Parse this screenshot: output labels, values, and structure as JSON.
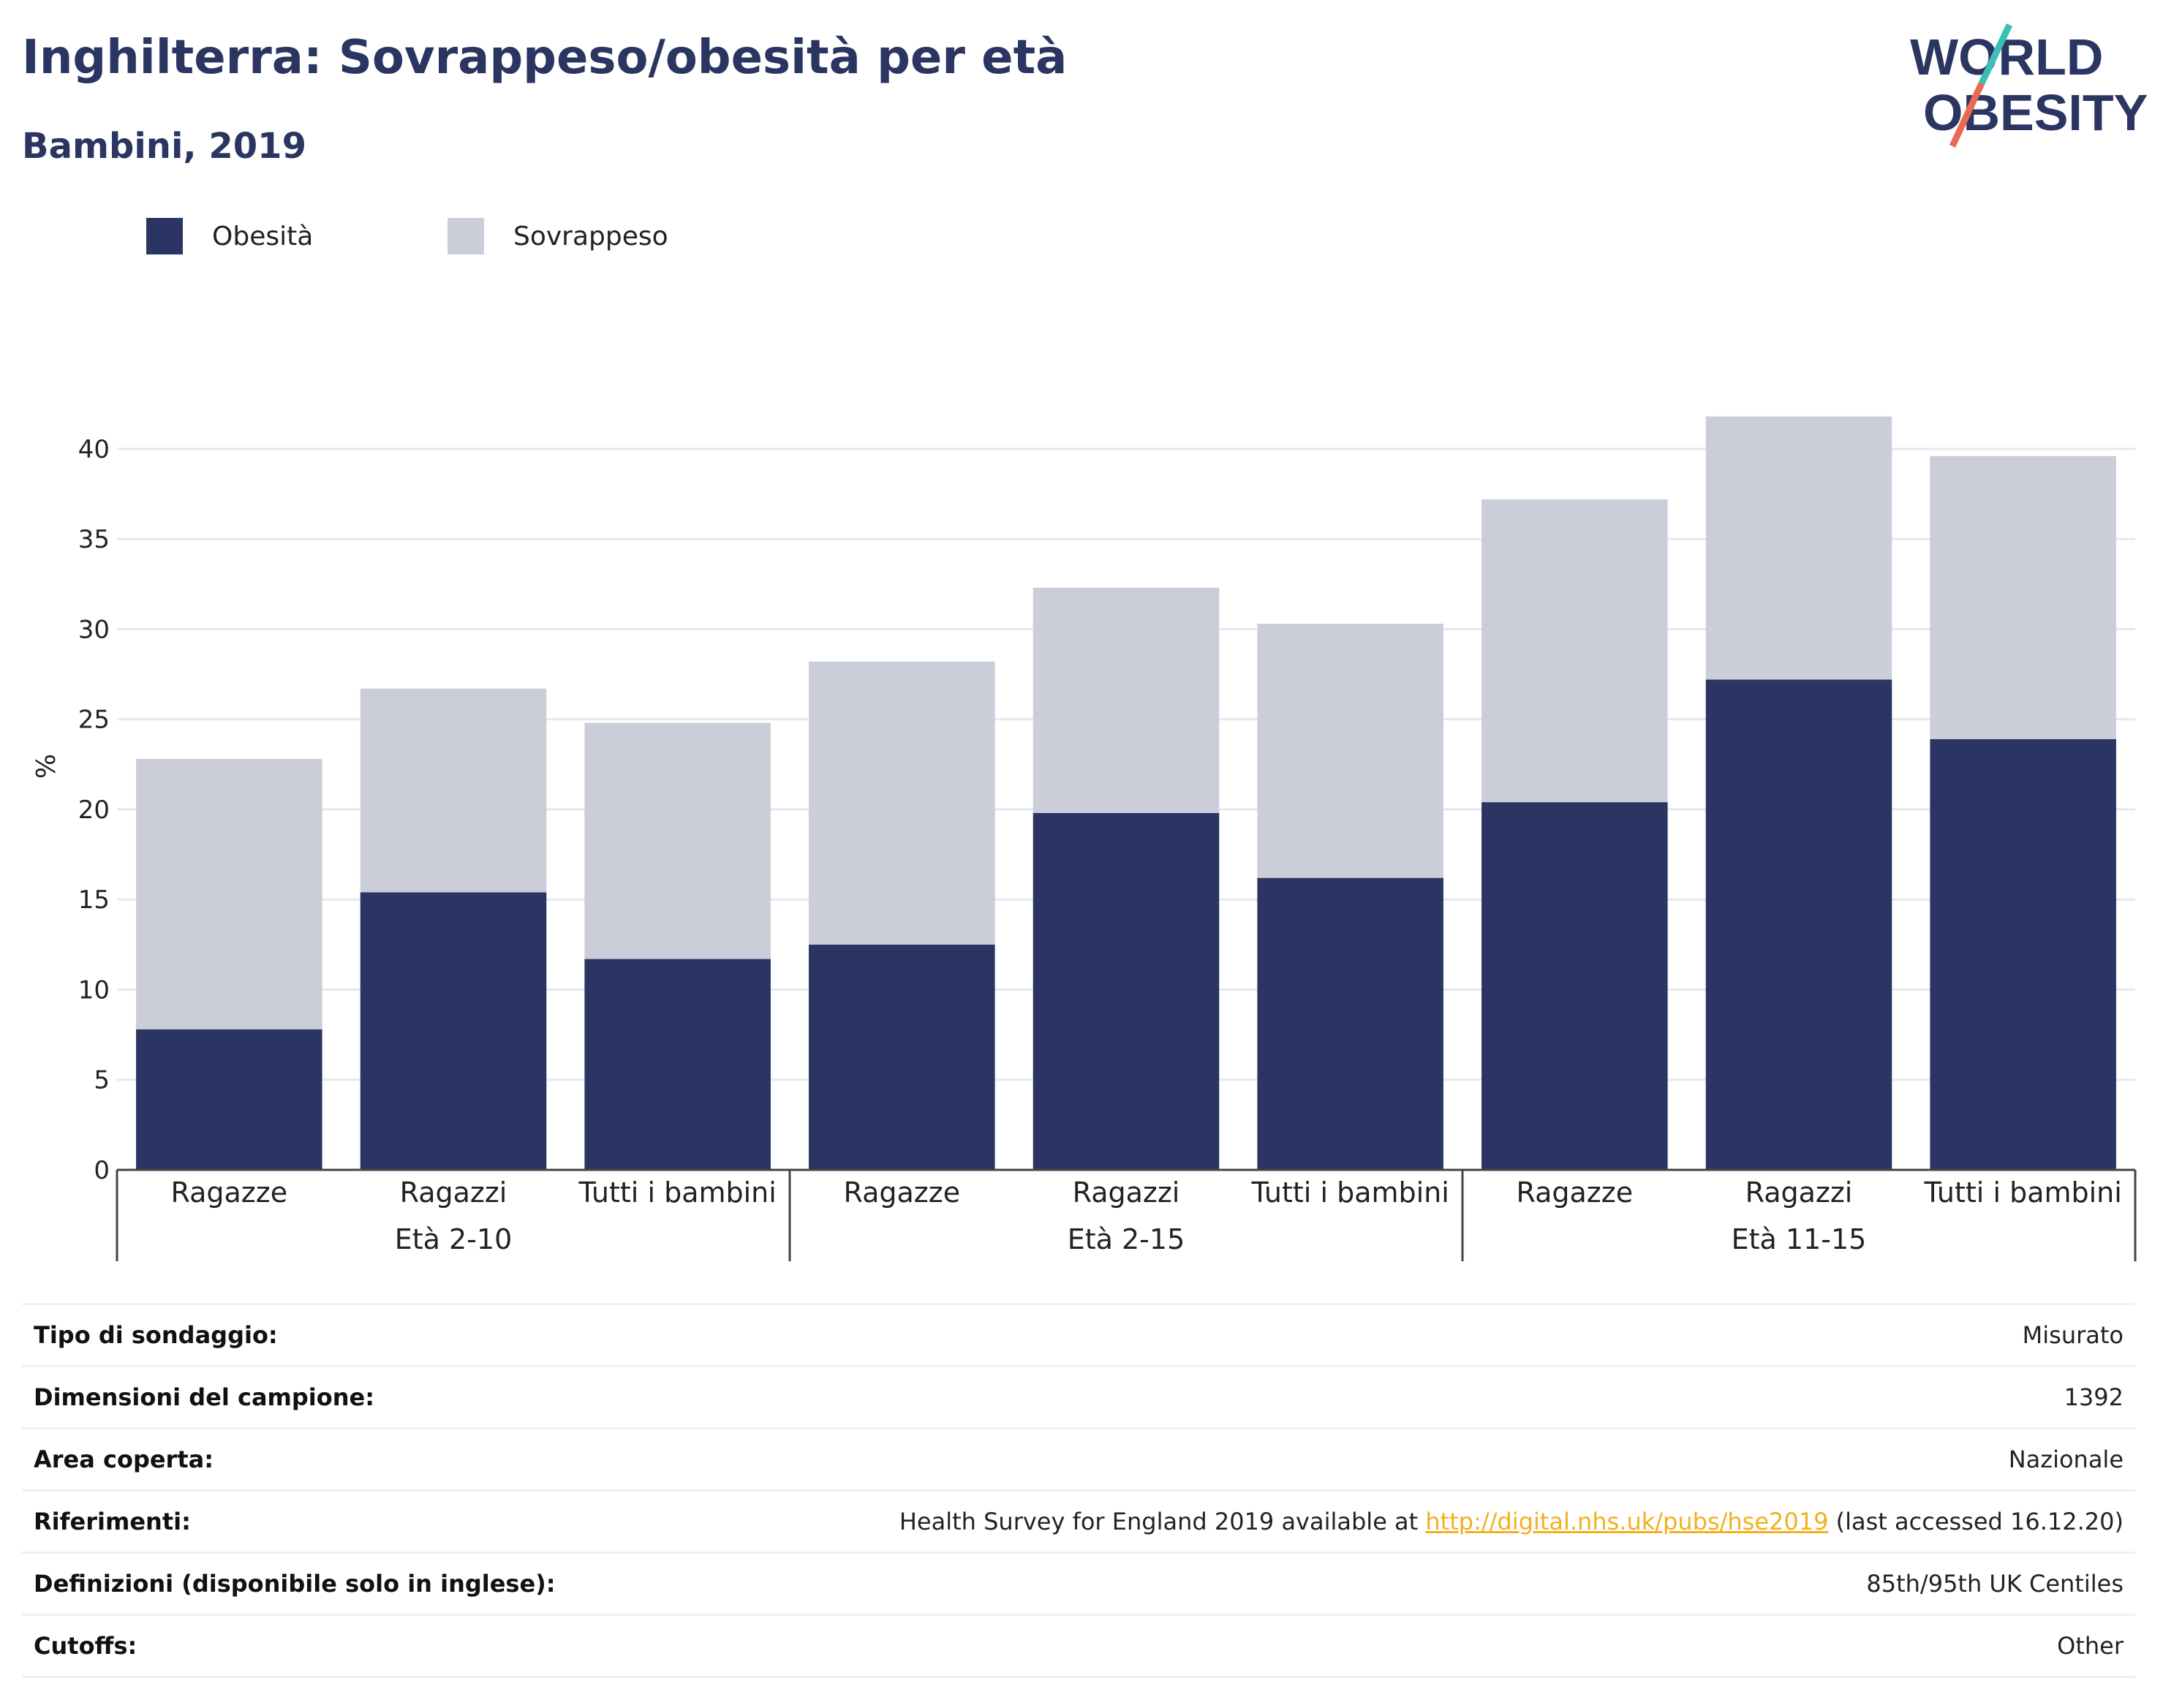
{
  "header": {
    "title": "Inghilterra: Sovrappeso/obesità per età",
    "subtitle": "Bambini, 2019"
  },
  "logo": {
    "line1": "WORLD",
    "line2": "OBESITY"
  },
  "colors": {
    "title": "#2b3561",
    "obesity": "#2b3563",
    "overweight": "#cbcdd8",
    "grid": "#e6e8ee",
    "link": "#f2b01e",
    "logo_slash_top": "#3bbfb6",
    "logo_slash_bottom": "#e86a55"
  },
  "legend": [
    {
      "label": "Obesità",
      "color": "#2b3563"
    },
    {
      "label": "Sovrappeso",
      "color": "#cbcdd8"
    }
  ],
  "chart_data": {
    "type": "bar",
    "stacked": true,
    "ylabel": "%",
    "ylim": [
      0,
      43
    ],
    "yticks": [
      0,
      5,
      10,
      15,
      20,
      25,
      30,
      35,
      40
    ],
    "grid": true,
    "legend_position": "top-left",
    "groups": [
      {
        "label": "Età 2-10",
        "categories": [
          "Ragazze",
          "Ragazzi",
          "Tutti i bambini"
        ]
      },
      {
        "label": "Età 2-15",
        "categories": [
          "Ragazze",
          "Ragazzi",
          "Tutti i bambini"
        ]
      },
      {
        "label": "Età 11-15",
        "categories": [
          "Ragazze",
          "Ragazzi",
          "Tutti i bambini"
        ]
      }
    ],
    "series": [
      {
        "name": "Obesità",
        "values": [
          7.8,
          15.4,
          11.7,
          12.5,
          19.8,
          16.2,
          20.4,
          27.2,
          23.9
        ]
      },
      {
        "name": "Sovrappeso",
        "values": [
          15.0,
          11.3,
          13.1,
          15.7,
          12.5,
          14.1,
          16.8,
          14.6,
          15.7
        ]
      }
    ]
  },
  "info": {
    "rows": [
      {
        "label": "Tipo di sondaggio:",
        "value": "Misurato"
      },
      {
        "label": "Dimensioni del campione:",
        "value": "1392"
      },
      {
        "label": "Area coperta:",
        "value": "Nazionale"
      },
      {
        "label": "Riferimenti:",
        "value_prefix": "Health Survey for England 2019 available at ",
        "link": "http://digital.nhs.uk/pubs/hse2019",
        "value_suffix": " (last accessed 16.12.20)"
      },
      {
        "label": "Definizioni (disponibile solo in inglese):",
        "value": "85th/95th UK Centiles"
      },
      {
        "label": "Cutoffs:",
        "value": "Other"
      }
    ]
  }
}
